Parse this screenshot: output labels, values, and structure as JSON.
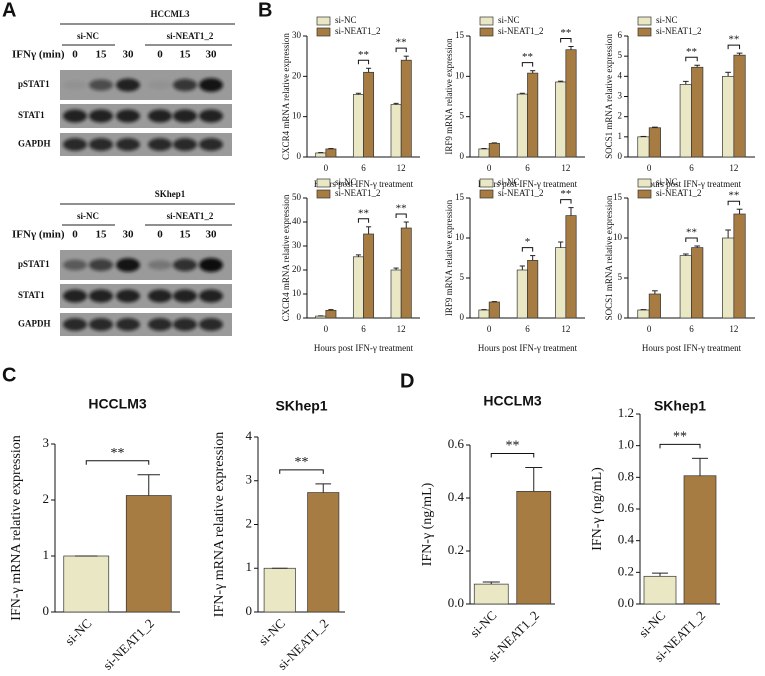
{
  "panels": [
    "A",
    "B",
    "C",
    "D"
  ],
  "blots": [
    {
      "title": "HCCML3",
      "groups": [
        "si-NC",
        "si-NEAT1_2"
      ],
      "time_label": "IFNγ (min)",
      "times": [
        0,
        15,
        30,
        0,
        15,
        30
      ],
      "rows": [
        "pSTAT1",
        "STAT1",
        "GAPDH"
      ]
    },
    {
      "title": "SKhep1",
      "groups": [
        "si-NC",
        "si-NEAT1_2"
      ],
      "time_label": "IFNγ (min)",
      "times": [
        0,
        15,
        30,
        0,
        15,
        30
      ],
      "rows": [
        "pSTAT1",
        "STAT1",
        "GAPDH"
      ]
    }
  ],
  "chart_data": [
    {
      "type": "bar",
      "ylabel": "CXCR4 mRNA relative expression",
      "xlabel": "Hours post IFN-γ treatment",
      "categories": [
        "0",
        "6",
        "12"
      ],
      "series": [
        {
          "name": "si-NC",
          "color": "#e9e7c4",
          "values": [
            1,
            15.5,
            13
          ],
          "errors": [
            0.1,
            0.3,
            0.3
          ]
        },
        {
          "name": "si-NEAT1_2",
          "color": "#a67c42",
          "values": [
            2,
            21,
            24
          ],
          "errors": [
            0.1,
            1,
            1
          ]
        }
      ],
      "ylim": [
        0,
        30
      ],
      "yticks": [
        0,
        10,
        20,
        30
      ],
      "legend": "upper left",
      "significance": [
        null,
        "**",
        "**"
      ]
    },
    {
      "type": "bar",
      "ylabel": "IRF9 mRNA relative expression",
      "xlabel": "Hours post IFN-γ treatment",
      "categories": [
        "0",
        "6",
        "12"
      ],
      "series": [
        {
          "name": "si-NC",
          "color": "#e9e7c4",
          "values": [
            1,
            7.8,
            9.3
          ],
          "errors": [
            0.05,
            0.1,
            0.1
          ]
        },
        {
          "name": "si-NEAT1_2",
          "color": "#a67c42",
          "values": [
            1.7,
            10.4,
            13.3
          ],
          "errors": [
            0.05,
            0.3,
            0.4
          ]
        }
      ],
      "ylim": [
        0,
        15
      ],
      "yticks": [
        0,
        5,
        10,
        15
      ],
      "legend": "upper left",
      "significance": [
        null,
        "**",
        "**"
      ]
    },
    {
      "type": "bar",
      "ylabel": "SOCS1 mRNA relative expression",
      "xlabel": "Hours post IFN-γ treatment",
      "categories": [
        "0",
        "6",
        "12"
      ],
      "series": [
        {
          "name": "si-NC",
          "color": "#e9e7c4",
          "values": [
            1,
            3.6,
            4.0
          ],
          "errors": [
            0.02,
            0.15,
            0.2
          ]
        },
        {
          "name": "si-NEAT1_2",
          "color": "#a67c42",
          "values": [
            1.45,
            4.45,
            5.05
          ],
          "errors": [
            0.03,
            0.1,
            0.1
          ]
        }
      ],
      "ylim": [
        0,
        6
      ],
      "yticks": [
        0,
        1,
        2,
        3,
        4,
        5,
        6
      ],
      "legend": "upper left",
      "significance": [
        null,
        "**",
        "**"
      ]
    },
    {
      "type": "bar",
      "ylabel": "CXCR4 mRNA relative expression",
      "xlabel": "Hours post IFN-γ treatment",
      "categories": [
        "0",
        "6",
        "12"
      ],
      "series": [
        {
          "name": "si-NC",
          "color": "#e9e7c4",
          "values": [
            0.8,
            25.5,
            20
          ],
          "errors": [
            0.1,
            0.8,
            0.8
          ]
        },
        {
          "name": "si-NEAT1_2",
          "color": "#a67c42",
          "values": [
            3.2,
            35,
            37.5
          ],
          "errors": [
            0.3,
            3,
            2.5
          ]
        }
      ],
      "ylim": [
        0,
        50
      ],
      "yticks": [
        0,
        10,
        20,
        30,
        40,
        50
      ],
      "legend": "upper left",
      "significance": [
        null,
        "**",
        "**"
      ]
    },
    {
      "type": "bar",
      "ylabel": "IRF9 mRNA relative expression",
      "xlabel": "Hours post IFN-γ treatment",
      "categories": [
        "0",
        "6",
        "12"
      ],
      "series": [
        {
          "name": "si-NC",
          "color": "#e9e7c4",
          "values": [
            1,
            6,
            8.8
          ],
          "errors": [
            0.05,
            0.5,
            0.7
          ]
        },
        {
          "name": "si-NEAT1_2",
          "color": "#a67c42",
          "values": [
            2,
            7.2,
            12.8
          ],
          "errors": [
            0.05,
            0.6,
            1
          ]
        }
      ],
      "ylim": [
        0,
        15
      ],
      "yticks": [
        0,
        5,
        10,
        15
      ],
      "legend": "upper left",
      "significance": [
        null,
        "*",
        "**"
      ]
    },
    {
      "type": "bar",
      "ylabel": "SOCS1 mRNA relative expression",
      "xlabel": "Hours post IFN-γ treatment",
      "categories": [
        "0",
        "6",
        "12"
      ],
      "series": [
        {
          "name": "si-NC",
          "color": "#e9e7c4",
          "values": [
            1,
            7.8,
            10
          ],
          "errors": [
            0.05,
            0.2,
            1
          ]
        },
        {
          "name": "si-NEAT1_2",
          "color": "#a67c42",
          "values": [
            3,
            8.8,
            13
          ],
          "errors": [
            0.4,
            0.2,
            0.6
          ]
        }
      ],
      "ylim": [
        0,
        15
      ],
      "yticks": [
        0,
        5,
        10,
        15
      ],
      "legend": "upper left",
      "significance": [
        null,
        "**",
        "**"
      ]
    },
    {
      "type": "bar",
      "title": "HCCLM3",
      "ylabel": "IFN-γ mRNA relative expression",
      "categories": [
        "si-NC",
        "si-NEAT1_2"
      ],
      "values": [
        1,
        2.08
      ],
      "errors": [
        0,
        0.37
      ],
      "colors": [
        "#e9e7c4",
        "#a67c42"
      ],
      "ylim": [
        0,
        3
      ],
      "yticks": [
        0,
        1,
        2,
        3
      ],
      "significance": "**"
    },
    {
      "type": "bar",
      "title": "SKhep1",
      "ylabel": "IFN-γ mRNA relative expression",
      "categories": [
        "si-NC",
        "si-NEAT1_2"
      ],
      "values": [
        1,
        2.73
      ],
      "errors": [
        0,
        0.2
      ],
      "colors": [
        "#e9e7c4",
        "#a67c42"
      ],
      "ylim": [
        0,
        4
      ],
      "yticks": [
        0,
        1,
        2,
        3,
        4
      ],
      "significance": "**"
    },
    {
      "type": "bar",
      "title": "HCCLM3",
      "ylabel": "IFN-γ (ng/mL)",
      "categories": [
        "si-NC",
        "si-NEAT1_2"
      ],
      "values": [
        0.075,
        0.425
      ],
      "errors": [
        0.008,
        0.09
      ],
      "colors": [
        "#e9e7c4",
        "#a67c42"
      ],
      "ylim": [
        0,
        0.6
      ],
      "yticks": [
        {
          "value": 0,
          "label": "0.0"
        },
        0.2,
        0.4,
        0.6
      ],
      "significance": "**"
    },
    {
      "type": "bar",
      "title": "SKhep1",
      "ylabel": "IFN-γ (ng/mL)",
      "categories": [
        "si-NC",
        "si-NEAT1_2"
      ],
      "values": [
        0.175,
        0.81
      ],
      "errors": [
        0.02,
        0.11
      ],
      "colors": [
        "#e9e7c4",
        "#a67c42"
      ],
      "ylim": [
        0,
        1.2
      ],
      "yticks": [
        {
          "value": 0,
          "label": "0.0"
        },
        0.2,
        0.4,
        0.6,
        0.8,
        {
          "value": 1,
          "label": "1.0"
        },
        1.2
      ],
      "significance": "**"
    }
  ]
}
